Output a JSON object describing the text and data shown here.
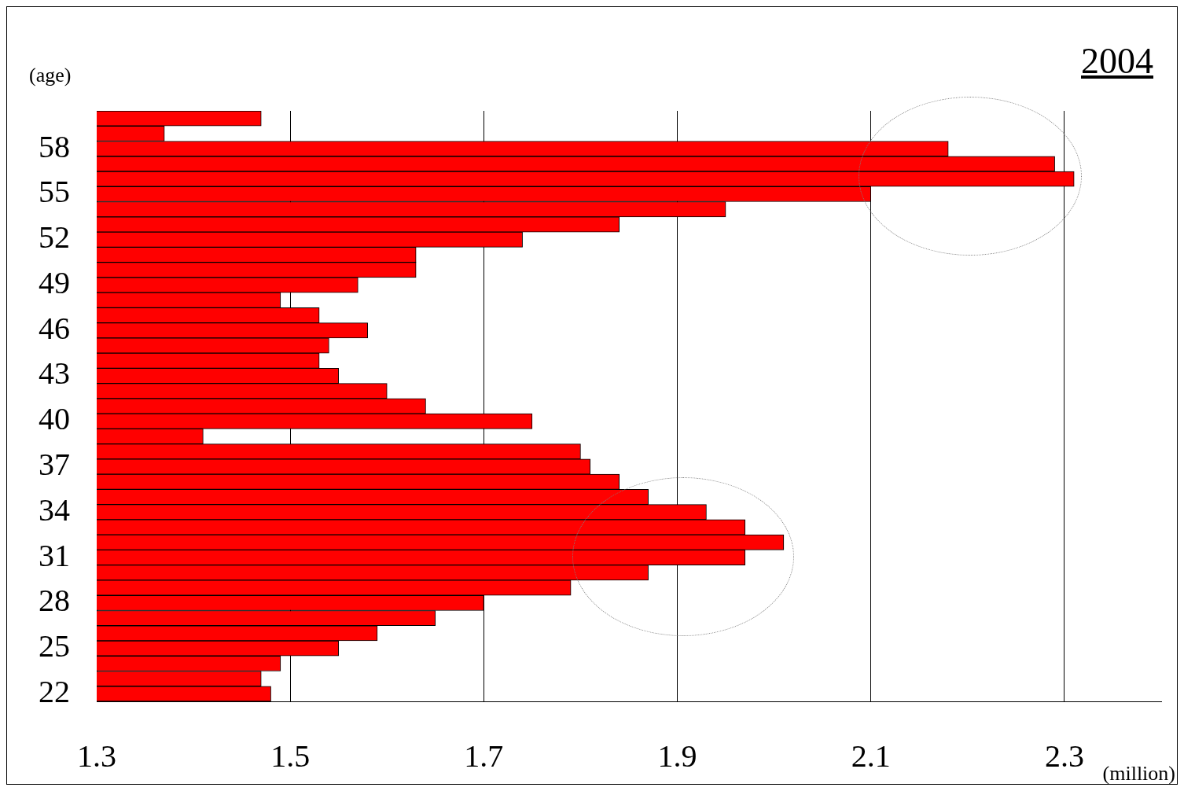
{
  "chart_data": {
    "type": "bar",
    "orientation": "horizontal",
    "title": "2004",
    "xlabel": "(million)",
    "ylabel": "(age)",
    "categories": [
      null,
      null,
      "58",
      null,
      null,
      "55",
      null,
      null,
      "52",
      null,
      null,
      "49",
      null,
      null,
      "46",
      null,
      null,
      "43",
      null,
      null,
      "40",
      null,
      null,
      "37",
      null,
      null,
      "34",
      null,
      null,
      "31",
      null,
      null,
      "28",
      null,
      null,
      "25",
      null,
      null,
      "22"
    ],
    "values": [
      1.47,
      1.37,
      2.18,
      2.29,
      2.31,
      2.1,
      1.95,
      1.84,
      1.74,
      1.63,
      1.63,
      1.57,
      1.49,
      1.53,
      1.58,
      1.54,
      1.53,
      1.55,
      1.6,
      1.64,
      1.75,
      1.41,
      1.8,
      1.81,
      1.84,
      1.87,
      1.93,
      1.97,
      2.01,
      1.97,
      1.87,
      1.79,
      1.7,
      1.65,
      1.59,
      1.55,
      1.49,
      1.47,
      1.48
    ],
    "color": "#ff0000",
    "xlim": [
      1.3,
      2.4
    ],
    "xticks": [
      1.3,
      1.5,
      1.7,
      1.9,
      2.1,
      2.3
    ],
    "grid": "x",
    "legend": false
  }
}
